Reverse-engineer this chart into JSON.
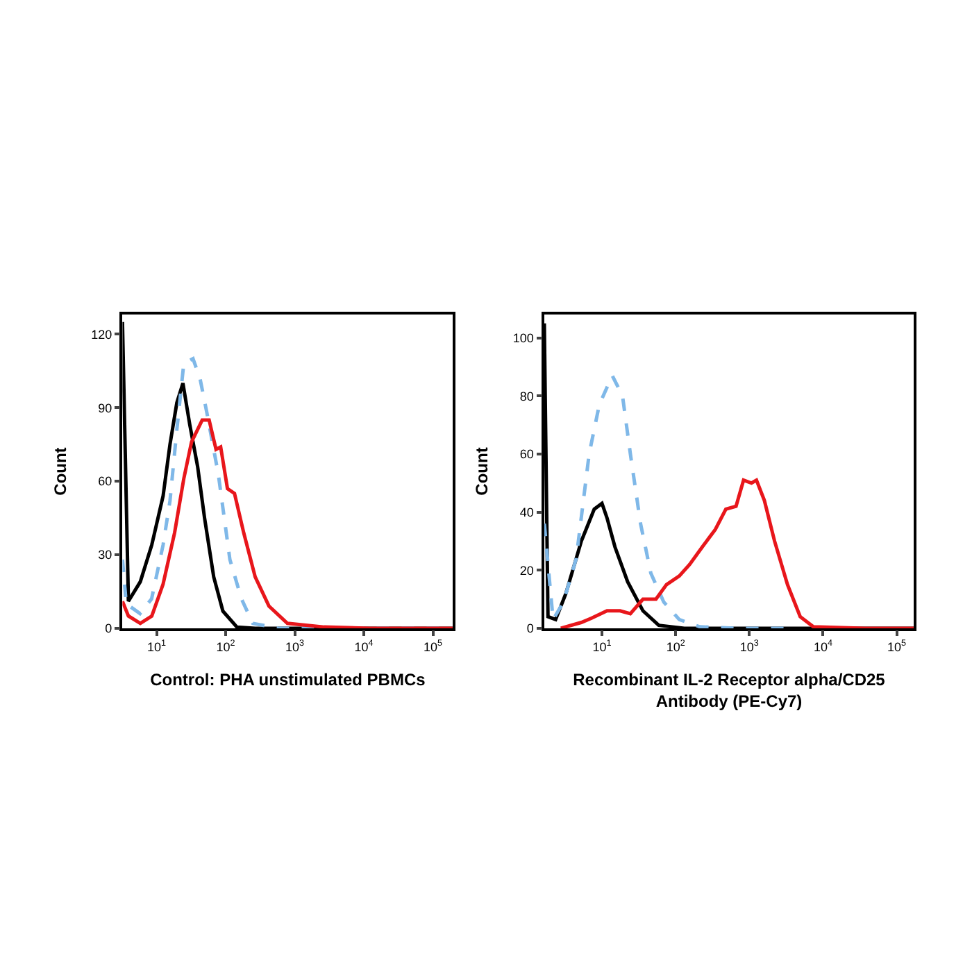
{
  "chart_data": [
    {
      "type": "line",
      "xlabel": "Control: PHA unstimulated PBMCs",
      "ylabel": "Count",
      "log": "x",
      "xlim": [
        3.2,
        195000
      ],
      "ylim": [
        0,
        128
      ],
      "xticks": [
        {
          "value": 10,
          "label": "10$^{1}$"
        },
        {
          "value": 100,
          "label": "10$^{2}$"
        },
        {
          "value": 1000,
          "label": "10$^{3}$"
        },
        {
          "value": 10000,
          "label": "10$^{4}$"
        },
        {
          "value": 100000,
          "label": "10$^{5}$"
        }
      ],
      "yticks": [
        0,
        30,
        60,
        90,
        120
      ],
      "series": [
        {
          "color": "#000000",
          "line_style": "solid",
          "x": [
            3.2,
            3.9,
            5.8,
            8.5,
            12.4,
            15.6,
            19.6,
            24,
            30.2,
            39.2,
            49.4,
            67,
            91,
            145,
            268,
            195000
          ],
          "values": [
            125,
            11,
            19,
            34,
            54,
            75,
            92,
            100,
            83,
            66,
            45,
            21,
            7,
            0.5,
            0,
            0
          ]
        },
        {
          "color": "#7fb8e8",
          "line_style": "dashed",
          "x": [
            3.2,
            3.63,
            5.75,
            8.45,
            12.4,
            15.6,
            19.6,
            24.7,
            33.6,
            42.4,
            53.3,
            78,
            115,
            169,
            247,
            575,
            195000
          ],
          "values": [
            28,
            10,
            6,
            12,
            34,
            52,
            81,
            108,
            110,
            102,
            88,
            63,
            28,
            12,
            2,
            0,
            0
          ]
        },
        {
          "color": "#e8161b",
          "line_style": "solid",
          "x": [
            3.2,
            3.9,
            5.8,
            8.5,
            12.4,
            18.2,
            24.7,
            32,
            45.7,
            57.5,
            72.4,
            84.5,
            106,
            134,
            182,
            267,
            423,
            782,
            2670,
            12400,
            195000
          ],
          "values": [
            11,
            5,
            2,
            5,
            18,
            39,
            61,
            76,
            85,
            85,
            73,
            74,
            57,
            55,
            39,
            21,
            9,
            2,
            0.5,
            0,
            0
          ]
        }
      ]
    },
    {
      "type": "line",
      "xlabel": "Recombinant IL-2 Receptor alpha/CD25 Antibody (PE-Cy7)",
      "ylabel": "Count",
      "log": "x",
      "xlim": [
        1.65,
        170000
      ],
      "ylim": [
        0,
        108
      ],
      "xticks": [
        {
          "value": 10,
          "label": "10$^{1}$"
        },
        {
          "value": 100,
          "label": "10$^{2}$"
        },
        {
          "value": 1000,
          "label": "10$^{3}$"
        },
        {
          "value": 10000,
          "label": "10$^{4}$"
        },
        {
          "value": 100000,
          "label": "10$^{5}$"
        }
      ],
      "yticks": [
        0,
        20,
        40,
        60,
        80,
        100
      ],
      "series": [
        {
          "color": "#000000",
          "line_style": "solid",
          "x": [
            1.65,
            1.85,
            2.35,
            3.24,
            5.25,
            7.85,
            10,
            11.7,
            15,
            22.3,
            36,
            59,
            131,
            170000
          ],
          "values": [
            105,
            4,
            3,
            12,
            30,
            41,
            43,
            38,
            28,
            16,
            6,
            1,
            0,
            0
          ]
        },
        {
          "color": "#7fb8e8",
          "line_style": "dashed",
          "x": [
            1.65,
            2.17,
            3.0,
            4.47,
            6.7,
            9.2,
            13.8,
            19,
            24.3,
            33.4,
            46,
            69,
            112,
            213,
            660,
            3300
          ],
          "values": [
            36,
            3,
            9,
            24,
            60,
            77,
            87,
            80,
            60,
            36,
            19,
            9,
            3,
            0.5,
            0,
            0
          ]
        },
        {
          "color": "#e8161b",
          "line_style": "solid",
          "x": [
            2.76,
            5.25,
            7.25,
            11.7,
            17.6,
            24.3,
            36,
            54,
            75,
            112,
            155,
            230,
            345,
            480,
            660,
            835,
            1070,
            1250,
            1600,
            2200,
            3300,
            4900,
            7400,
            37000,
            170000
          ],
          "values": [
            0,
            2,
            3.5,
            6,
            6,
            5,
            10,
            10,
            15,
            18,
            22,
            28,
            34,
            41,
            42,
            51,
            50,
            51,
            44,
            30,
            15,
            4,
            0.5,
            0,
            0
          ]
        }
      ]
    }
  ]
}
